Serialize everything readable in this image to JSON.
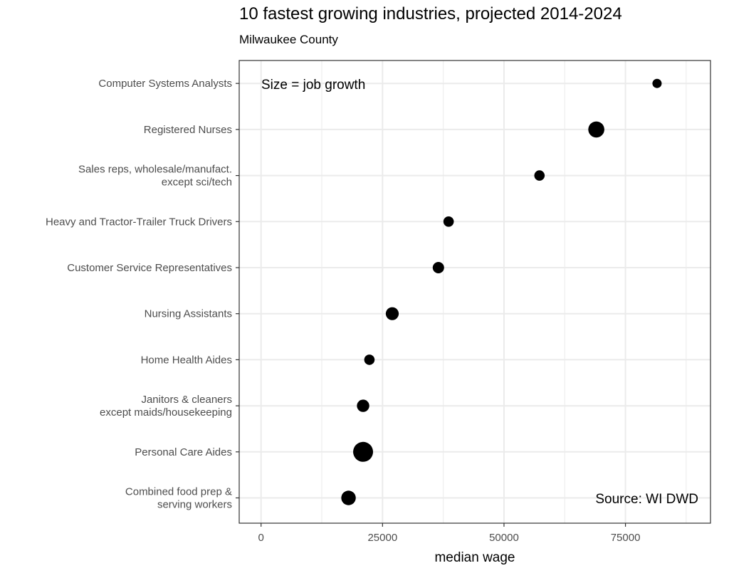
{
  "chart_data": {
    "type": "scatter",
    "title": "10 fastest growing industries, projected 2014-2024",
    "subtitle": "Milwaukee County",
    "xlabel": "median wage",
    "ylabel": "",
    "xlim": [
      -4500,
      92500
    ],
    "x_ticks": [
      0,
      25000,
      50000,
      75000
    ],
    "x_tick_labels": [
      "0",
      "25000",
      "50000",
      "75000"
    ],
    "grid": true,
    "categories": [
      [
        "Combined food prep &",
        "serving workers"
      ],
      [
        "Personal Care Aides"
      ],
      [
        "Janitors & cleaners",
        "except maids/housekeeping"
      ],
      [
        "Home Health Aides"
      ],
      [
        "Nursing Assistants"
      ],
      [
        "Customer Service Representatives"
      ],
      [
        "Heavy and Tractor-Trailer Truck Drivers"
      ],
      [
        "Sales reps, wholesale/manufact.",
        "except sci/tech"
      ],
      [
        "Registered Nurses"
      ],
      [
        "Computer Systems Analysts"
      ]
    ],
    "points": [
      {
        "x": 18000,
        "size": 0.62
      },
      {
        "x": 21000,
        "size": 1.0
      },
      {
        "x": 21000,
        "size": 0.47
      },
      {
        "x": 22300,
        "size": 0.33
      },
      {
        "x": 27000,
        "size": 0.51
      },
      {
        "x": 36500,
        "size": 0.4
      },
      {
        "x": 38600,
        "size": 0.33
      },
      {
        "x": 57300,
        "size": 0.33
      },
      {
        "x": 69000,
        "size": 0.73
      },
      {
        "x": 81500,
        "size": 0.25
      }
    ],
    "annotations": [
      {
        "text": "Size = job growth",
        "position": "top-left"
      },
      {
        "text": "Source: WI DWD",
        "position": "bottom-right"
      }
    ],
    "colors": {
      "point": "#000000",
      "grid": "#ebebeb",
      "panel_border": "#333333",
      "tick_text": "#4d4d4d"
    }
  }
}
